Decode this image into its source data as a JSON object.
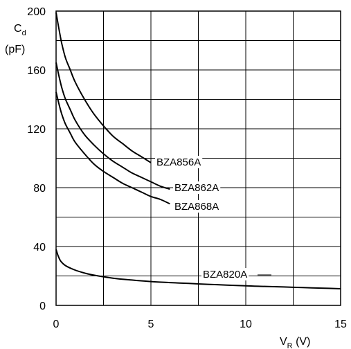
{
  "chart_data": {
    "type": "line",
    "ylabel_main": "C",
    "ylabel_sub": "d",
    "ylabel_unit": "(pF)",
    "xlabel_main": "V",
    "xlabel_sub": "R",
    "xlabel_unit": " (V)",
    "xlim": [
      0,
      15
    ],
    "ylim": [
      0,
      200
    ],
    "x_ticks": [
      "0",
      "5",
      "10",
      "15"
    ],
    "y_ticks": [
      "0",
      "40",
      "80",
      "120",
      "160",
      "200"
    ],
    "grid": true,
    "series": [
      {
        "name": "BZA856A",
        "x": [
          0,
          0.15,
          0.3,
          0.5,
          0.75,
          1,
          1.5,
          2,
          2.5,
          3,
          3.5,
          4,
          4.5,
          5
        ],
        "y": [
          199,
          188,
          178,
          168,
          160,
          152,
          140,
          130,
          122,
          115,
          110,
          105,
          101,
          97
        ]
      },
      {
        "name": "BZA862A",
        "x": [
          0,
          0.15,
          0.3,
          0.5,
          0.75,
          1,
          1.5,
          2,
          2.5,
          3,
          3.5,
          4,
          4.5,
          5,
          5.5,
          6
        ],
        "y": [
          165,
          156,
          148,
          140,
          133,
          126,
          116,
          109,
          103,
          98,
          94,
          90,
          87,
          84,
          81,
          79
        ]
      },
      {
        "name": "BZA868A",
        "x": [
          0,
          0.15,
          0.3,
          0.5,
          0.75,
          1,
          1.5,
          2,
          2.5,
          3,
          3.5,
          4,
          4.5,
          5,
          5.5,
          6
        ],
        "y": [
          145,
          137,
          130,
          123,
          117,
          111,
          103,
          96,
          91,
          87,
          83,
          80,
          77,
          74,
          72,
          69
        ]
      },
      {
        "name": "BZA820A",
        "x": [
          0,
          0.1,
          0.25,
          0.5,
          1,
          1.5,
          2,
          3,
          4,
          5,
          6,
          7,
          8,
          9,
          10,
          11,
          12,
          13,
          14,
          15
        ],
        "y": [
          38,
          34,
          30,
          27,
          24,
          22,
          20.5,
          18.5,
          17.2,
          16.2,
          15.5,
          14.9,
          14.3,
          13.8,
          13.3,
          12.9,
          12.5,
          12.1,
          11.7,
          11.3
        ]
      }
    ]
  }
}
